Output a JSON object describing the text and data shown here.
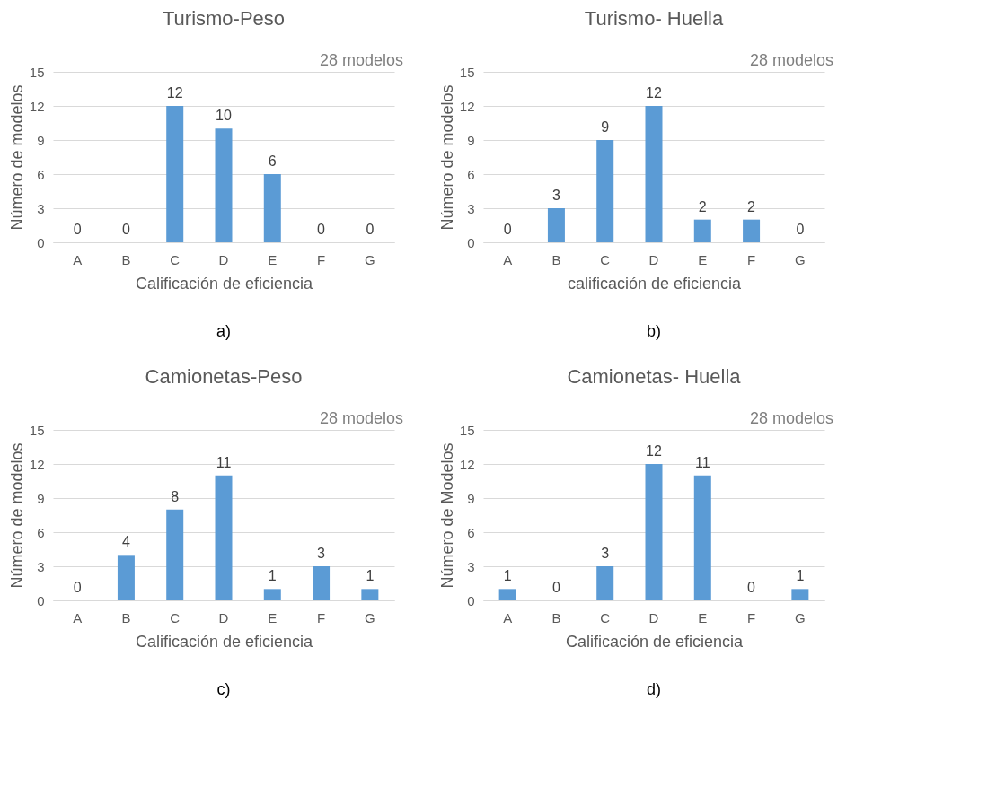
{
  "chart_data": [
    {
      "type": "bar",
      "title": "Turismo-Peso",
      "xlabel": "Calificación de eficiencia",
      "ylabel": "Número de modelos",
      "categories": [
        "A",
        "B",
        "C",
        "D",
        "E",
        "F",
        "G"
      ],
      "values": [
        0,
        0,
        12,
        10,
        6,
        0,
        0
      ],
      "color": "#5b9bd5",
      "ylim": [
        0,
        15
      ],
      "yticks": [
        0,
        3,
        6,
        9,
        12,
        15
      ],
      "grid": "y",
      "data_labels": true,
      "annotations": [
        "28 modelos",
        "a)"
      ]
    },
    {
      "type": "bar",
      "title": "Turismo-  Huella",
      "xlabel": "calificación de eficiencia",
      "ylabel": "Número de modelos",
      "categories": [
        "A",
        "B",
        "C",
        "D",
        "E",
        "F",
        "G"
      ],
      "values": [
        0,
        3,
        9,
        12,
        2,
        2,
        0
      ],
      "color": "#5b9bd5",
      "ylim": [
        0,
        15
      ],
      "yticks": [
        0,
        3,
        6,
        9,
        12,
        15
      ],
      "grid": "y",
      "data_labels": true,
      "annotations": [
        "28 modelos",
        "b)"
      ]
    },
    {
      "type": "bar",
      "title": "Camionetas-Peso",
      "xlabel": "Calificación de eficiencia",
      "ylabel": "Número de modelos",
      "categories": [
        "A",
        "B",
        "C",
        "D",
        "E",
        "F",
        "G"
      ],
      "values": [
        0,
        4,
        8,
        11,
        1,
        3,
        1
      ],
      "color": "#5b9bd5",
      "ylim": [
        0,
        15
      ],
      "yticks": [
        0,
        3,
        6,
        9,
        12,
        15
      ],
      "grid": "y",
      "data_labels": true,
      "annotations": [
        "28 modelos",
        "c)"
      ]
    },
    {
      "type": "bar",
      "title": "Camionetas- Huella",
      "xlabel": "Calificación de eficiencia",
      "ylabel": "Número de Modelos",
      "categories": [
        "A",
        "B",
        "C",
        "D",
        "E",
        "F",
        "G"
      ],
      "values": [
        1,
        0,
        3,
        12,
        11,
        0,
        1
      ],
      "color": "#5b9bd5",
      "ylim": [
        0,
        15
      ],
      "yticks": [
        0,
        3,
        6,
        9,
        12,
        15
      ],
      "grid": "y",
      "data_labels": true,
      "annotations": [
        "28 modelos",
        "d)"
      ]
    }
  ]
}
